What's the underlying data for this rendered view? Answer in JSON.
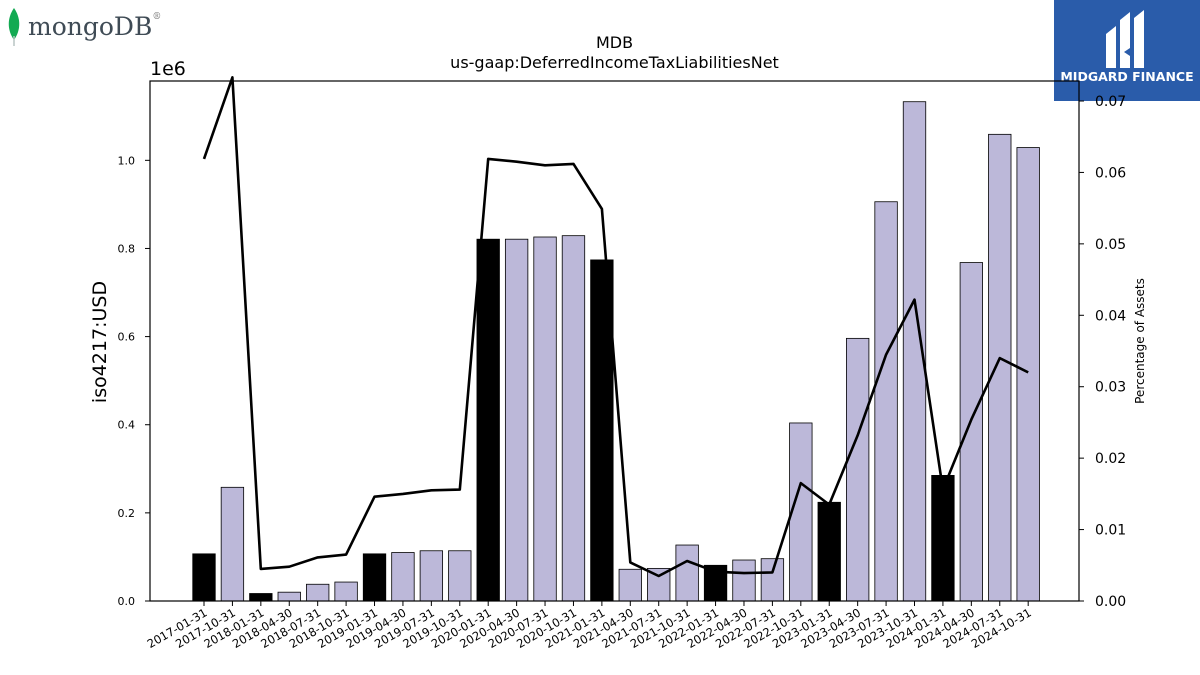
{
  "brand": {
    "logo_text": "mongoDB",
    "logo_icon": "leaf-icon",
    "registered_mark": "®",
    "accent_color": "#13aa52"
  },
  "badge": {
    "name": "MIDGARD FINANCE",
    "icon": "midgard-logo-icon",
    "background": "#2a5caa"
  },
  "chart_data": {
    "type": "bar",
    "title": "MDB",
    "subtitle": "us-gaap:DeferredIncomeTaxLiabilitiesNet",
    "ylabel": "iso4217:USD",
    "y_offset_label": "1e6",
    "y2label": "Percentage of Assets",
    "ylim": [
      0,
      1180000
    ],
    "y2lim": [
      0,
      0.0728
    ],
    "yticks": [
      0.0,
      0.2,
      0.4,
      0.6,
      0.8,
      1.0
    ],
    "ytick_labels": [
      "0.0",
      "0.2",
      "0.4",
      "0.6",
      "0.8",
      "1.0"
    ],
    "y2ticks": [
      0.0,
      0.01,
      0.02,
      0.03,
      0.04,
      0.05,
      0.06,
      0.07
    ],
    "y2tick_labels": [
      "0.00",
      "0.01",
      "0.02",
      "0.03",
      "0.04",
      "0.05",
      "0.06",
      "0.07"
    ],
    "grid": false,
    "colors": {
      "annual_bar": "#000000",
      "quarterly_bar": "#bcb8d9",
      "line": "#000000"
    },
    "categories": [
      "2017-01-31",
      "2017-10-31",
      "2018-01-31",
      "2018-04-30",
      "2018-07-31",
      "2018-10-31",
      "2019-01-31",
      "2019-04-30",
      "2019-07-31",
      "2019-10-31",
      "2020-01-31",
      "2020-04-30",
      "2020-07-31",
      "2020-10-31",
      "2021-01-31",
      "2021-04-30",
      "2021-07-31",
      "2021-10-31",
      "2022-01-31",
      "2022-04-30",
      "2022-07-31",
      "2022-10-31",
      "2023-01-31",
      "2023-04-30",
      "2023-07-31",
      "2023-10-31",
      "2024-01-31",
      "2024-04-30",
      "2024-07-31",
      "2024-10-31"
    ],
    "series": [
      {
        "kind": "bar",
        "values": [
          107000,
          258000,
          17000,
          20000,
          38000,
          43000,
          107000,
          110000,
          114000,
          114000,
          821000,
          821000,
          826000,
          829000,
          774000,
          72000,
          74000,
          127000,
          81000,
          93000,
          96000,
          404000,
          224000,
          596000,
          906000,
          1133000,
          285000,
          768000,
          1059000,
          1029000
        ],
        "annual": [
          true,
          false,
          true,
          false,
          false,
          false,
          true,
          false,
          false,
          false,
          true,
          false,
          false,
          false,
          true,
          false,
          false,
          false,
          true,
          false,
          false,
          false,
          true,
          false,
          false,
          false,
          true,
          false,
          false,
          false
        ]
      },
      {
        "kind": "line",
        "axis": "right",
        "values": [
          0.0619,
          0.0733,
          0.0045,
          0.0048,
          0.0061,
          0.0065,
          0.0146,
          0.015,
          0.0155,
          0.0156,
          0.0619,
          0.0615,
          0.061,
          0.0612,
          0.0549,
          0.0054,
          0.0035,
          0.0056,
          0.0041,
          0.0039,
          0.004,
          0.0165,
          0.0135,
          0.0232,
          0.0345,
          0.0422,
          0.0156,
          0.0254,
          0.034,
          0.032
        ]
      }
    ]
  }
}
